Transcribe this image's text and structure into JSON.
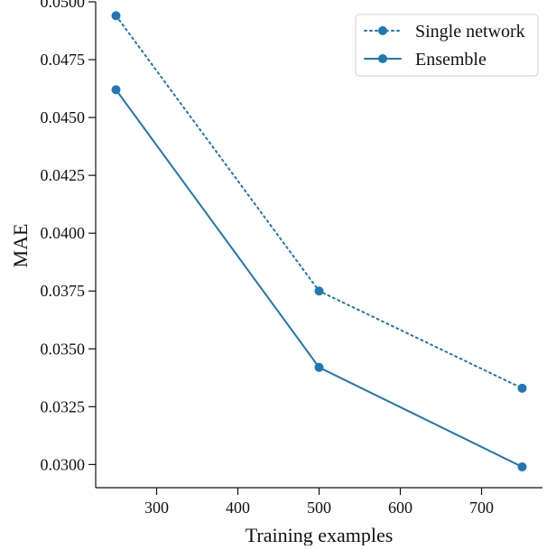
{
  "chart_data": {
    "type": "line",
    "title": "",
    "xlabel": "Training examples",
    "ylabel": "MAE",
    "x": [
      250,
      500,
      750
    ],
    "xlim": [
      225,
      775
    ],
    "ylim": [
      0.029,
      0.05
    ],
    "xticks": [
      300,
      400,
      500,
      600,
      700
    ],
    "xtick_labels": [
      "300",
      "400",
      "500",
      "600",
      "700"
    ],
    "yticks": [
      0.03,
      0.0325,
      0.035,
      0.0375,
      0.04,
      0.0425,
      0.045,
      0.0475,
      0.05
    ],
    "ytick_labels": [
      "0.0300",
      "0.0325",
      "0.0350",
      "0.0375",
      "0.0400",
      "0.0425",
      "0.0450",
      "0.0475",
      "0.0500"
    ],
    "grid": false,
    "legend_position": "top-right",
    "series": [
      {
        "name": "Single network",
        "values": [
          0.0494,
          0.0375,
          0.0333
        ],
        "style": "dotted",
        "marker": "circle",
        "color": "#1f77b4"
      },
      {
        "name": "Ensemble",
        "values": [
          0.0462,
          0.0342,
          0.0299
        ],
        "style": "solid",
        "marker": "circle",
        "color": "#1f77b4"
      }
    ]
  }
}
